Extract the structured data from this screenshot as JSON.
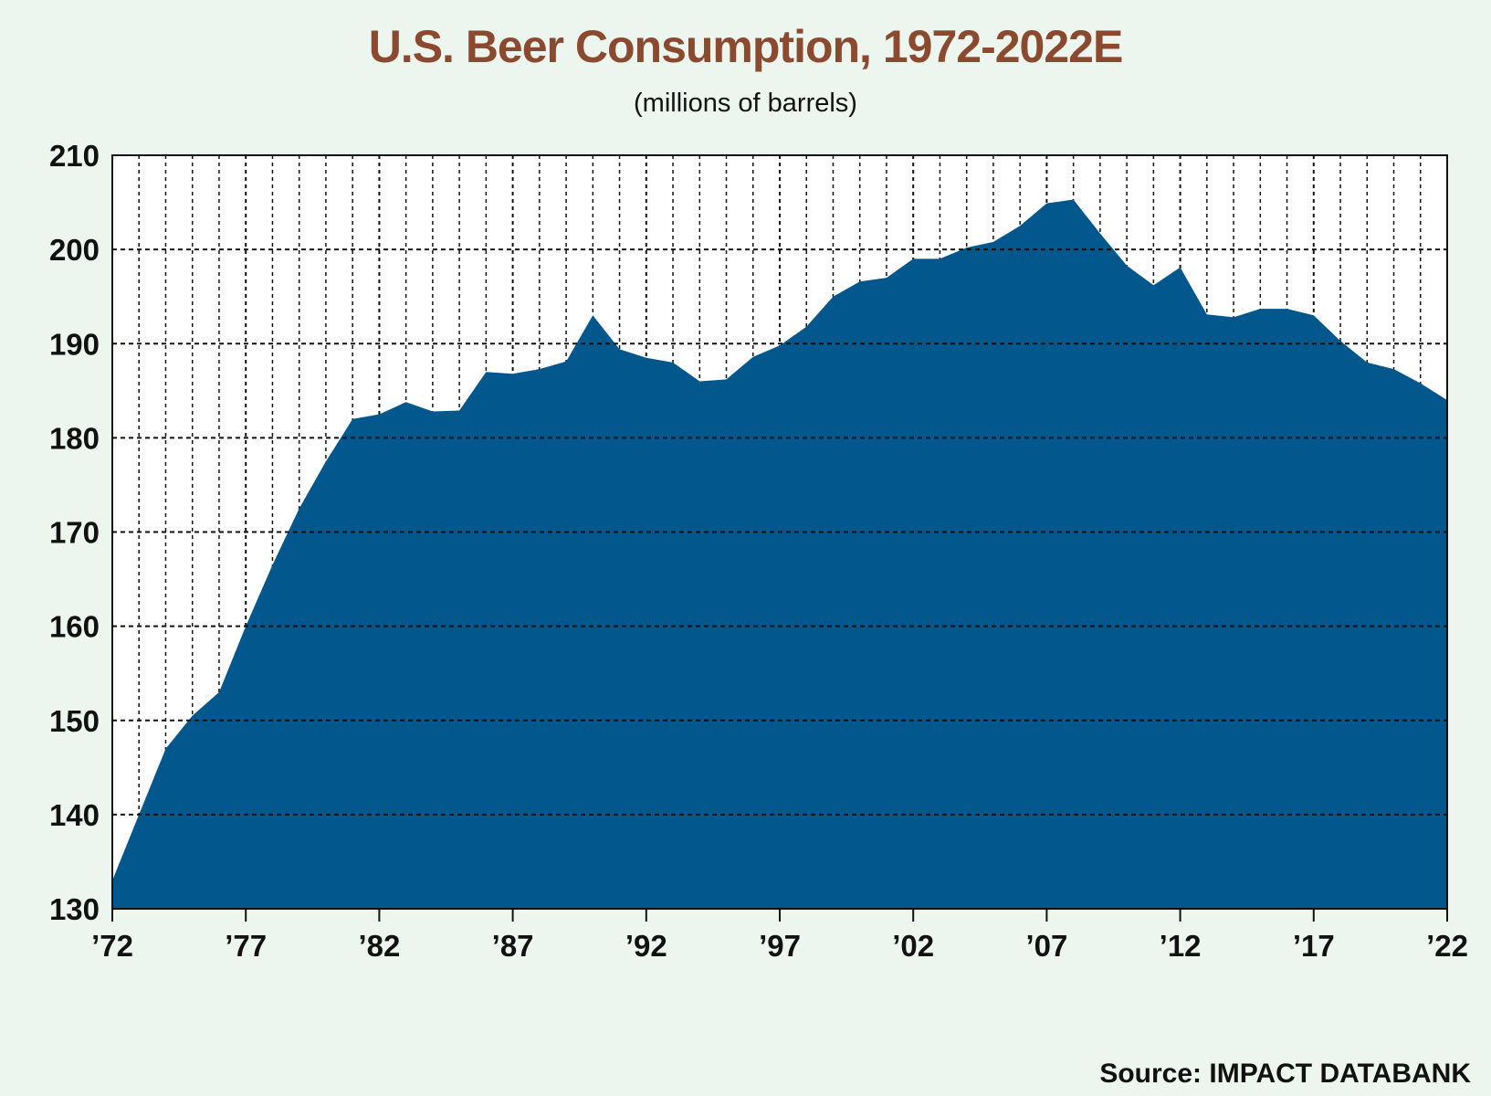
{
  "chart_data": {
    "type": "area",
    "title": "U.S. Beer Consumption, 1972-2022E",
    "subtitle": "(millions of barrels)",
    "xlabel": "",
    "ylabel": "",
    "ylim": [
      130,
      210
    ],
    "xlim": [
      1972,
      2022
    ],
    "y_ticks": [
      130,
      140,
      150,
      160,
      170,
      180,
      190,
      200,
      210
    ],
    "x_tick_labels": [
      {
        "year": 1972,
        "label": "’72"
      },
      {
        "year": 1977,
        "label": "’77"
      },
      {
        "year": 1982,
        "label": "’82"
      },
      {
        "year": 1987,
        "label": "’87"
      },
      {
        "year": 1992,
        "label": "’92"
      },
      {
        "year": 1997,
        "label": "’97"
      },
      {
        "year": 2002,
        "label": "’02"
      },
      {
        "year": 2007,
        "label": "’07"
      },
      {
        "year": 2012,
        "label": "’12"
      },
      {
        "year": 2017,
        "label": "’17"
      },
      {
        "year": 2022,
        "label": "’22"
      }
    ],
    "grid": true,
    "fill_color": "#02578c",
    "x": [
      1972,
      1973,
      1974,
      1975,
      1976,
      1977,
      1978,
      1979,
      1980,
      1981,
      1982,
      1983,
      1984,
      1985,
      1986,
      1987,
      1988,
      1989,
      1990,
      1991,
      1992,
      1993,
      1994,
      1995,
      1996,
      1997,
      1998,
      1999,
      2000,
      2001,
      2002,
      2003,
      2004,
      2005,
      2006,
      2007,
      2008,
      2009,
      2010,
      2011,
      2012,
      2013,
      2014,
      2015,
      2016,
      2017,
      2018,
      2019,
      2020,
      2021,
      2022
    ],
    "series": [
      {
        "values": [
          133,
          140,
          147,
          150.5,
          153,
          160,
          166.5,
          172.5,
          177.5,
          182,
          182.5,
          183.8,
          182.8,
          182.9,
          187,
          186.8,
          187.3,
          188.1,
          193,
          189.4,
          188.5,
          188,
          186,
          186.2,
          188.6,
          189.8,
          191.8,
          195,
          196.6,
          197,
          199,
          199,
          200.2,
          200.8,
          202.5,
          204.9,
          205.3,
          201.7,
          198.3,
          196.2,
          198.1,
          193.1,
          192.8,
          193.7,
          193.7,
          193,
          190.3,
          188,
          187.3,
          185.8,
          184
        ]
      }
    ]
  },
  "source": "Source: IMPACT DATABANK"
}
